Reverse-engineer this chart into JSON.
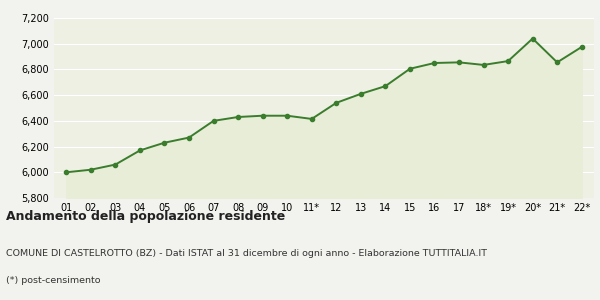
{
  "x_labels": [
    "01",
    "02",
    "03",
    "04",
    "05",
    "06",
    "07",
    "08",
    "09",
    "10",
    "11*",
    "12",
    "13",
    "14",
    "15",
    "16",
    "17",
    "18*",
    "19*",
    "20*",
    "21*",
    "22*"
  ],
  "y_values": [
    6000,
    6020,
    6060,
    6170,
    6230,
    6270,
    6400,
    6430,
    6440,
    6440,
    6415,
    6540,
    6610,
    6670,
    6805,
    6850,
    6855,
    6835,
    6865,
    7040,
    6855,
    6975
  ],
  "line_color": "#3a7d2c",
  "fill_color": "#e8edd8",
  "marker": "o",
  "marker_size": 3.0,
  "linewidth": 1.4,
  "ylim": [
    5800,
    7200
  ],
  "yticks": [
    5800,
    6000,
    6200,
    6400,
    6600,
    6800,
    7000,
    7200
  ],
  "title": "Andamento della popolazione residente",
  "subtitle": "COMUNE DI CASTELROTTO (BZ) - Dati ISTAT al 31 dicembre di ogni anno - Elaborazione TUTTITALIA.IT",
  "footnote": "(*) post-censimento",
  "bg_color": "#f2f2ee",
  "plot_bg_color": "#eef0e4",
  "grid_color": "#ffffff",
  "title_fontsize": 9,
  "subtitle_fontsize": 6.8,
  "footnote_fontsize": 6.8,
  "tick_fontsize": 7.0
}
